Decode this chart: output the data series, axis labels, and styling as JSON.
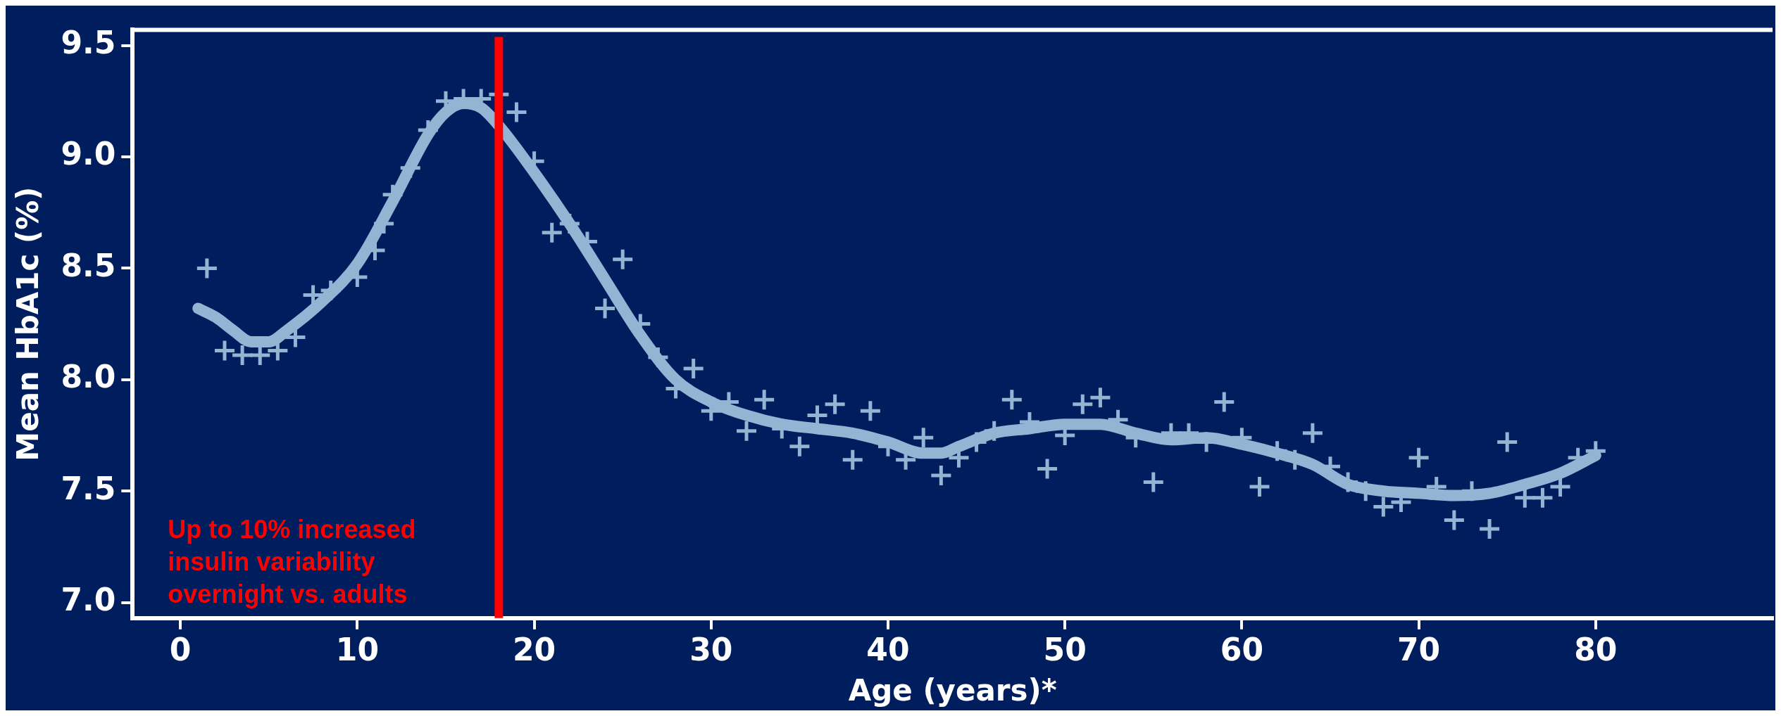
{
  "chart_data": {
    "type": "scatter",
    "xlabel": "Age (years)*",
    "ylabel": "Mean HbA1c (%)",
    "xlim": [
      -2.7,
      90
    ],
    "xticks": [
      0,
      10,
      20,
      30,
      40,
      50,
      60,
      70,
      80
    ],
    "ylim": [
      6.93,
      9.57
    ],
    "yticks": [
      {
        "value": 7,
        "label": "7.0"
      },
      7.5,
      {
        "value": 8,
        "label": "8.0"
      },
      8.5,
      {
        "value": 9,
        "label": "9.0"
      },
      9.5
    ],
    "grid": false,
    "legend": false,
    "marker": "cross",
    "series": [
      {
        "color": "#94b4d4",
        "x": [
          1.5,
          2.5,
          3.5,
          4.5,
          5.5,
          6.5,
          7.5,
          8.5,
          10,
          11,
          11.5,
          12,
          13,
          14,
          15,
          16,
          17,
          18,
          19,
          20,
          21,
          22,
          23,
          24,
          25,
          26,
          27,
          28,
          29,
          30,
          31,
          32,
          33,
          34,
          35,
          36,
          37,
          38,
          39,
          40,
          41,
          42,
          43,
          44,
          45,
          46,
          47,
          48,
          49,
          50,
          51,
          52,
          53,
          54,
          55,
          56,
          57,
          58,
          59,
          60,
          61,
          62,
          63,
          64,
          65,
          66,
          67,
          68,
          69,
          70,
          71,
          72,
          73,
          74,
          75,
          76,
          77,
          78,
          79,
          80
        ],
        "values": [
          8.5,
          8.13,
          8.11,
          8.11,
          8.13,
          8.19,
          8.38,
          8.4,
          8.46,
          8.58,
          8.7,
          8.83,
          8.95,
          9.12,
          9.25,
          9.26,
          9.26,
          9.28,
          9.2,
          8.98,
          8.66,
          8.7,
          8.62,
          8.32,
          8.54,
          8.25,
          8.1,
          7.96,
          8.05,
          7.86,
          7.9,
          7.77,
          7.91,
          7.78,
          7.7,
          7.84,
          7.89,
          7.64,
          7.86,
          7.7,
          7.64,
          7.74,
          7.57,
          7.65,
          7.72,
          7.77,
          7.91,
          7.81,
          7.6,
          7.75,
          7.89,
          7.92,
          7.82,
          7.74,
          7.54,
          7.76,
          7.76,
          7.72,
          7.9,
          7.74,
          7.52,
          7.68,
          7.64,
          7.76,
          7.61,
          7.54,
          7.5,
          7.43,
          7.45,
          7.65,
          7.52,
          7.37,
          7.5,
          7.33,
          7.72,
          7.47,
          7.47,
          7.52,
          7.65,
          7.68
        ]
      },
      {
        "type": "line",
        "color": "#94b4d4",
        "marker": "none",
        "x": [
          1,
          2,
          3,
          4,
          5,
          6,
          8,
          10,
          12,
          14,
          15,
          16,
          17,
          18,
          20,
          22,
          24,
          26,
          28,
          30,
          32,
          34,
          36,
          38,
          40,
          42,
          43,
          44,
          46,
          48,
          50,
          52,
          54,
          56,
          58,
          60,
          62,
          64,
          66,
          68,
          70,
          72,
          74,
          76,
          78,
          80
        ],
        "values": [
          8.32,
          8.28,
          8.22,
          8.17,
          8.17,
          8.22,
          8.35,
          8.52,
          8.8,
          9.1,
          9.2,
          9.24,
          9.22,
          9.14,
          8.93,
          8.7,
          8.45,
          8.2,
          8,
          7.9,
          7.84,
          7.8,
          7.78,
          7.76,
          7.72,
          7.67,
          7.67,
          7.7,
          7.76,
          7.78,
          7.8,
          7.8,
          7.76,
          7.73,
          7.74,
          7.71,
          7.67,
          7.62,
          7.53,
          7.5,
          7.49,
          7.48,
          7.49,
          7.53,
          7.58,
          7.66
        ]
      }
    ],
    "ref_lines": [
      {
        "axis": "x",
        "value": 18,
        "label": "Up to 10% increased insulin variability overnight vs. adults",
        "color": "#ff0000"
      }
    ]
  }
}
